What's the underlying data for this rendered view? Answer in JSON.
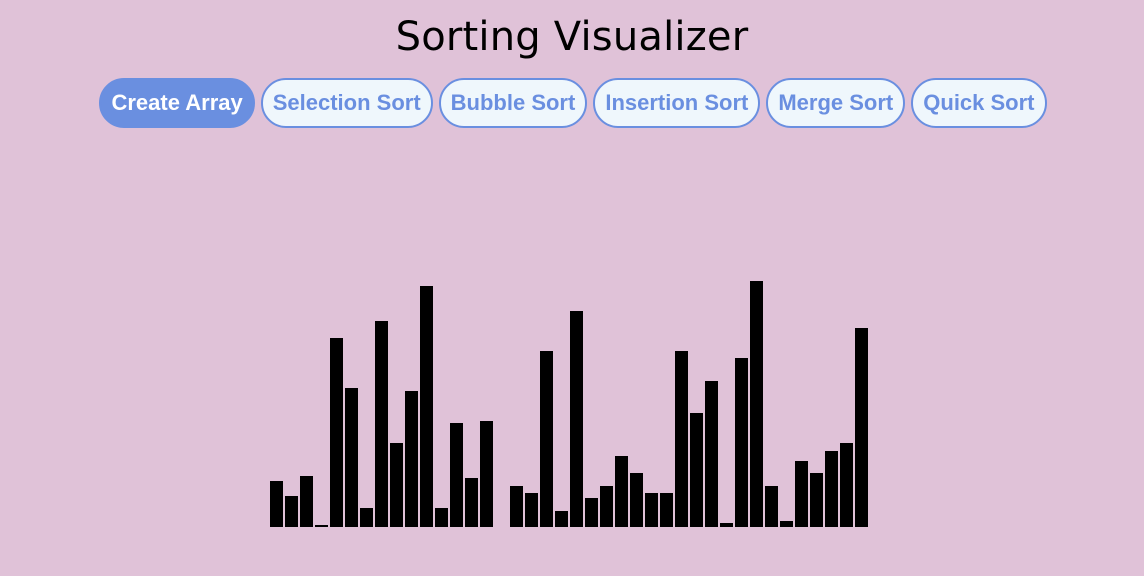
{
  "app": {
    "title": "Sorting Visualizer"
  },
  "buttons": [
    {
      "label": "Create Array"
    },
    {
      "label": "Selection Sort"
    },
    {
      "label": "Bubble Sort"
    },
    {
      "label": "Insertion Sort"
    },
    {
      "label": "Merge Sort"
    },
    {
      "label": "Quick Sort"
    }
  ],
  "colors": {
    "background": "#e0c2d8",
    "accent": "#6a8fe0",
    "button_fill": "#eff7fc",
    "bar": "#000000"
  },
  "array": {
    "values": [
      46,
      31,
      51,
      2,
      189,
      139,
      19,
      206,
      84,
      136,
      241,
      19,
      104,
      49,
      106,
      0,
      41,
      34,
      176,
      16,
      216,
      29,
      41,
      71,
      54,
      34,
      34,
      176,
      114,
      146,
      4,
      169,
      246,
      41,
      6,
      66,
      54,
      76,
      84,
      199
    ]
  }
}
